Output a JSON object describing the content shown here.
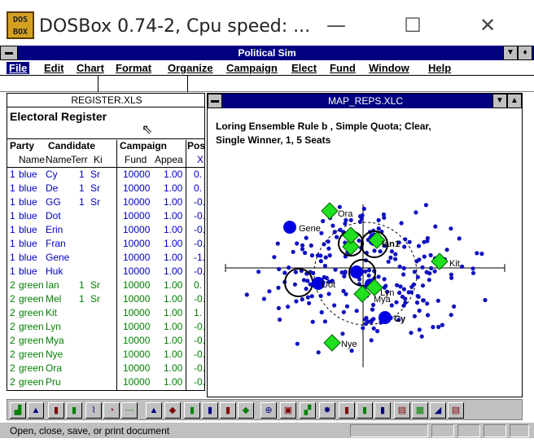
{
  "window": {
    "title": "DOSBox 0.74-2, Cpu speed: ...",
    "logo_top": "DOS",
    "logo_bottom": "BOX",
    "min": "—",
    "max": "☐",
    "close": "✕"
  },
  "app": {
    "title": "Political Sim"
  },
  "menu": [
    "File",
    "Edit",
    "Chart",
    "Format",
    "Organize",
    "Campaign",
    "Elect",
    "Fund",
    "Window",
    "Help"
  ],
  "register": {
    "filename": "REGISTER.XLS",
    "heading": "Electoral Register",
    "groups": {
      "party": "Party",
      "candidate": "Candidate",
      "campaign": "Campaign",
      "pos": "Pos"
    },
    "cols": {
      "name": "Name",
      "cname": "Name",
      "term": "Terr",
      "kind": "Ki",
      "fund": "Fund",
      "appeal": "Appea",
      "x": "X"
    },
    "rows": [
      {
        "num": "1",
        "party": "blue",
        "name": "Cy",
        "term": "1",
        "kind": "Sr",
        "fund": "10000",
        "appeal": "1.00",
        "pos": "0.",
        "color": "#0000c0"
      },
      {
        "num": "1",
        "party": "blue",
        "name": "De",
        "term": "1",
        "kind": "Sr",
        "fund": "10000",
        "appeal": "1.00",
        "pos": "0.",
        "color": "#0000c0"
      },
      {
        "num": "1",
        "party": "blue",
        "name": "GG",
        "term": "1",
        "kind": "Sr",
        "fund": "10000",
        "appeal": "1.00",
        "pos": "-0.",
        "color": "#0000c0"
      },
      {
        "num": "1",
        "party": "blue",
        "name": "Dot",
        "term": "",
        "kind": "",
        "fund": "10000",
        "appeal": "1.00",
        "pos": "-0.",
        "color": "#0000c0"
      },
      {
        "num": "1",
        "party": "blue",
        "name": "Erin",
        "term": "",
        "kind": "",
        "fund": "10000",
        "appeal": "1.00",
        "pos": "-0.",
        "color": "#0000c0"
      },
      {
        "num": "1",
        "party": "blue",
        "name": "Fran",
        "term": "",
        "kind": "",
        "fund": "10000",
        "appeal": "1.00",
        "pos": "-0.",
        "color": "#0000c0"
      },
      {
        "num": "1",
        "party": "blue",
        "name": "Gene",
        "term": "",
        "kind": "",
        "fund": "10000",
        "appeal": "1.00",
        "pos": "-1.",
        "color": "#0000c0"
      },
      {
        "num": "1",
        "party": "blue",
        "name": "Huk",
        "term": "",
        "kind": "",
        "fund": "10000",
        "appeal": "1.00",
        "pos": "-0.",
        "color": "#0000c0"
      },
      {
        "num": "2",
        "party": "green",
        "name": "Ian",
        "term": "1",
        "kind": "Sr",
        "fund": "10000",
        "appeal": "1.00",
        "pos": "0.",
        "color": "#008000"
      },
      {
        "num": "2",
        "party": "green",
        "name": "Mel",
        "term": "1",
        "kind": "Sr",
        "fund": "10000",
        "appeal": "1.00",
        "pos": "-0.",
        "color": "#008000"
      },
      {
        "num": "2",
        "party": "green",
        "name": "Kit",
        "term": "",
        "kind": "",
        "fund": "10000",
        "appeal": "1.00",
        "pos": "1.",
        "color": "#008000"
      },
      {
        "num": "2",
        "party": "green",
        "name": "Lyn",
        "term": "",
        "kind": "",
        "fund": "10000",
        "appeal": "1.00",
        "pos": "-0.",
        "color": "#008000"
      },
      {
        "num": "2",
        "party": "green",
        "name": "Mya",
        "term": "",
        "kind": "",
        "fund": "10000",
        "appeal": "1.00",
        "pos": "-0.",
        "color": "#008000"
      },
      {
        "num": "2",
        "party": "green",
        "name": "Nye",
        "term": "",
        "kind": "",
        "fund": "10000",
        "appeal": "1.00",
        "pos": "-0.",
        "color": "#008000"
      },
      {
        "num": "2",
        "party": "green",
        "name": "Ora",
        "term": "",
        "kind": "",
        "fund": "10000",
        "appeal": "1.00",
        "pos": "-0.",
        "color": "#008000"
      },
      {
        "num": "2",
        "party": "green",
        "name": "Pru",
        "term": "",
        "kind": "",
        "fund": "10000",
        "appeal": "1.00",
        "pos": "-0.",
        "color": "#008000"
      }
    ]
  },
  "map": {
    "filename": "MAP_REPS.XLC",
    "subtitle1": "Loring Ensemble Rule b , Simple Quota; Clear,",
    "subtitle2": "Single Winner, 1, 5 Seats",
    "labels": {
      "ora": "Ora",
      "gene": "Gene",
      "ian": "Ian1",
      "kit": "Kit",
      "cy": "Cy",
      "nye": "Nye",
      "mya": "Mya",
      "lyn": "Lyn",
      "dot": "Dot"
    }
  },
  "status": {
    "text": "Open, close, save, or print document"
  }
}
